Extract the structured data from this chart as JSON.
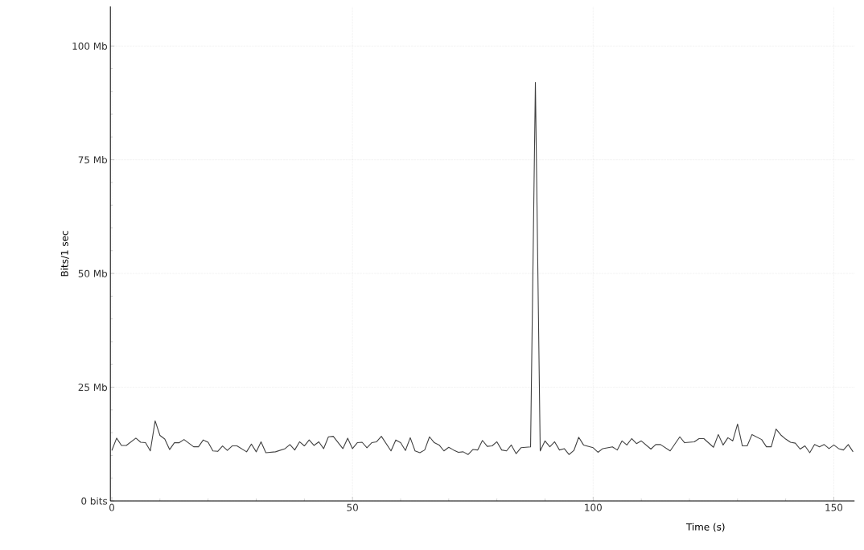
{
  "chart_data": {
    "type": "line",
    "xlabel": "Time (s)",
    "ylabel": "Bits/1 sec",
    "xlim": [
      -0.3,
      154.3
    ],
    "ylim": [
      0,
      108.7
    ],
    "xticks": [
      0,
      50,
      100,
      150
    ],
    "yticks": [
      {
        "value": 0,
        "label": "0 bits"
      },
      {
        "value": 25,
        "label": "25 Mb"
      },
      {
        "value": 50,
        "label": "50 Mb"
      },
      {
        "value": 75,
        "label": "75 Mb"
      },
      {
        "value": 100,
        "label": "100 Mb"
      }
    ],
    "grid": true,
    "marker": "none",
    "line_style": "solid",
    "series": [
      {
        "color": "#404040",
        "x": [
          0,
          1,
          2,
          3,
          5,
          6,
          7,
          8,
          9,
          10,
          11,
          12,
          13,
          14,
          15,
          17,
          18,
          19,
          20,
          21,
          22,
          23,
          24,
          25,
          26,
          28,
          29,
          30,
          31,
          32,
          34,
          36,
          37,
          38,
          39,
          40,
          41,
          42,
          43,
          44,
          45,
          46,
          48,
          49,
          50,
          51,
          52,
          53,
          54,
          55,
          56,
          58,
          59,
          60,
          61,
          62,
          63,
          64,
          65,
          66,
          67,
          68,
          69,
          70,
          71,
          72,
          73,
          74,
          75,
          76,
          77,
          78,
          79,
          80,
          81,
          82,
          83,
          84,
          85,
          87,
          88,
          89,
          90,
          91,
          92,
          93,
          94,
          95,
          96,
          97,
          98,
          100,
          101,
          102,
          104,
          105,
          106,
          107,
          108,
          109,
          110,
          112,
          113,
          114,
          116,
          118,
          119,
          121,
          122,
          123,
          125,
          126,
          127,
          128,
          129,
          130,
          131,
          132,
          133,
          135,
          136,
          137,
          138,
          139,
          140,
          141,
          142,
          143,
          144,
          145,
          146,
          147,
          148,
          149,
          150,
          151,
          152,
          153,
          154
        ],
        "values": [
          11.1,
          13.8,
          12.2,
          12.2,
          13.8,
          12.9,
          12.8,
          11.0,
          17.6,
          14.4,
          13.6,
          11.3,
          12.8,
          12.8,
          13.5,
          11.9,
          11.9,
          13.4,
          12.9,
          11.0,
          10.9,
          12.1,
          11.1,
          12.1,
          12.1,
          10.8,
          12.5,
          10.8,
          13.0,
          10.6,
          10.8,
          11.5,
          12.4,
          11.2,
          13.0,
          12.1,
          13.4,
          12.2,
          13.0,
          11.5,
          14.1,
          14.2,
          11.5,
          13.8,
          11.5,
          12.8,
          12.9,
          11.7,
          12.8,
          13.0,
          14.2,
          11.0,
          13.4,
          12.8,
          11.1,
          13.9,
          11.0,
          10.6,
          11.2,
          14.1,
          12.8,
          12.3,
          11.0,
          11.8,
          11.2,
          10.7,
          10.8,
          10.2,
          11.3,
          11.2,
          13.3,
          12.0,
          12.1,
          13.0,
          11.2,
          11.0,
          12.3,
          10.4,
          11.7,
          11.9,
          92,
          11.0,
          13.2,
          11.9,
          13.0,
          11.2,
          11.5,
          10.2,
          11.1,
          14.0,
          12.3,
          11.7,
          10.7,
          11.5,
          11.9,
          11.2,
          13.2,
          12.3,
          13.7,
          12.6,
          13.2,
          11.4,
          12.4,
          12.4,
          11.0,
          14.1,
          12.8,
          13.0,
          13.7,
          13.7,
          11.8,
          14.6,
          12.3,
          13.9,
          13.2,
          16.9,
          12.1,
          12.1,
          14.6,
          13.5,
          11.9,
          11.9,
          15.8,
          14.5,
          13.6,
          12.9,
          12.7,
          11.4,
          12.1,
          10.6,
          12.4,
          11.9,
          12.4,
          11.5,
          12.3,
          11.5,
          11.2,
          12.4,
          10.8
        ]
      }
    ]
  }
}
